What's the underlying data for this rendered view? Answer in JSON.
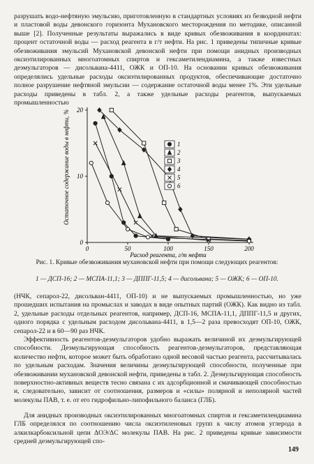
{
  "intro": "разрушать водо-нефтяную эмульсию, приготовленную в стандартных условиях из безводной нефти и пластовой воды девонского горизонта Мухановского месторождения по методике, описанной выше [2]. Полученные результаты выражались в виде кривых обезвоживания в координатах: процент остаточной воды — расход реагента в г/т нефти. На рис. 1 приведены типичные кривые обезвоживания эмульсий Мухановской девонской нефти при помощи анидных производных оксиэтилированных многоатомных спиртов и гексаметилендиамина, а также известных деэмульгаторов — дисольвана-4411, ОЖК и ОП-10. На основании кривых обезвоживания определялись удельные расходы оксиэтилированных продуктов, обеспечивающие достаточно полное разрушение нефтяной эмульсии — содержание остаточной воды менее 1%. Эти удельные расходы приведены в табл. 2, а также удельные расходы реагентов, выпускаемых промышленностью",
  "chart_data": {
    "type": "line",
    "y_label": "Остаточное содержание воды в нефти, %",
    "x_label": "Расход реагента, г/т нефти",
    "xlim": [
      0,
      200
    ],
    "xticks": [
      0,
      50,
      100,
      150,
      200
    ],
    "ylim": [
      0,
      20
    ],
    "yticks": [
      0,
      10,
      20
    ],
    "series": [
      {
        "name": "1",
        "color": "#222",
        "marker": "circle",
        "x": [
          10,
          30,
          45,
          60,
          100
        ],
        "values": [
          18,
          10,
          3,
          1,
          0.5
        ]
      },
      {
        "name": "2",
        "color": "#222",
        "marker": "triangle",
        "x": [
          20,
          45,
          65,
          85,
          200
        ],
        "values": [
          19,
          12,
          4,
          1,
          0.5
        ]
      },
      {
        "name": "3",
        "color": "#222",
        "marker": "square",
        "x": [
          30,
          70,
          95,
          110,
          150,
          200
        ],
        "values": [
          20,
          15,
          6,
          2,
          0.5,
          0.3
        ]
      },
      {
        "name": "4",
        "color": "#222",
        "marker": "diamond",
        "x": [
          15,
          40,
          70,
          100,
          115,
          130,
          200
        ],
        "values": [
          20,
          17,
          14,
          10,
          5,
          1,
          0.5
        ]
      },
      {
        "name": "5",
        "color": "#222",
        "marker": "cross",
        "x": [
          10,
          40,
          60,
          80,
          150
        ],
        "values": [
          15,
          8,
          3,
          1,
          0.3
        ]
      },
      {
        "name": "6",
        "color": "#222",
        "marker": "open",
        "x": [
          5,
          25,
          50,
          75,
          200
        ],
        "values": [
          12,
          6,
          2,
          0.8,
          0.2
        ]
      }
    ]
  },
  "caption": {
    "title": "Рис. 1. Кривые обезвоживания мухановской нефти при помощи следующих реагентов:",
    "legend": "1 — ДСП-16; 2 — МСПА-11,1; 3 — ДППГ-11,5; 4 — дисольвана; 5 — ОЖК; 6 — ОП-10."
  },
  "body": [
    "(НЧК, сепарол-22, дисольван-4411, ОП-10) и не выпускаемых промышленностью, но уже прошедших испытания на промыслах и заводах в виде опытных партий (ОЖК). Как видно из табл. 2, удельные расходы отдельных реагентов, например, ДСП-16, МСПА-11,1, ДППГ-11,5 и других, одного порядка с удельным расходом дисольвана-4411, в 1,5—2 раза превосходят ОП-10, ОЖК, сепарол-22 и в 60—90 раз НЧК.",
    "Эффективность реагентов-деэмульгаторов удобно выражать величиной их деэмульгирующей способности. Деэмульгирующая способность реагентов-деэмульгаторов, представляющая количество нефти, которое может быть обработано одной весовой частью реагента, рассчитывалась по удельным расходам. Значения величины деэмульгирующей способности, полученные при обезвоживании мухановской девонской нефти, приведены в табл. 2. Деэмульгирующая способность поверхностно-активных веществ тесно связана с их адсорбционной и смачивающей способностью и, следовательно, зависит от соотношения, размеров и «силы» полярной и неполярной частей молекулы ПАВ, т. е. от его гидрофильно-липофильного баланса (ГЛБ).",
    "Для анидных производных оксиэтилированных многоатомных спиртов и гексаметилендиамина ГЛБ определялся по соотношению числа оксиэтиленовых групп к числу атомов углерода в алкилкарбоксильной цепи ΔОЭ/ΔC молекулы ПАВ. На рис. 2 приведены кривые зависимости средней деэмульгирующей спо-"
  ],
  "page_number": "149"
}
